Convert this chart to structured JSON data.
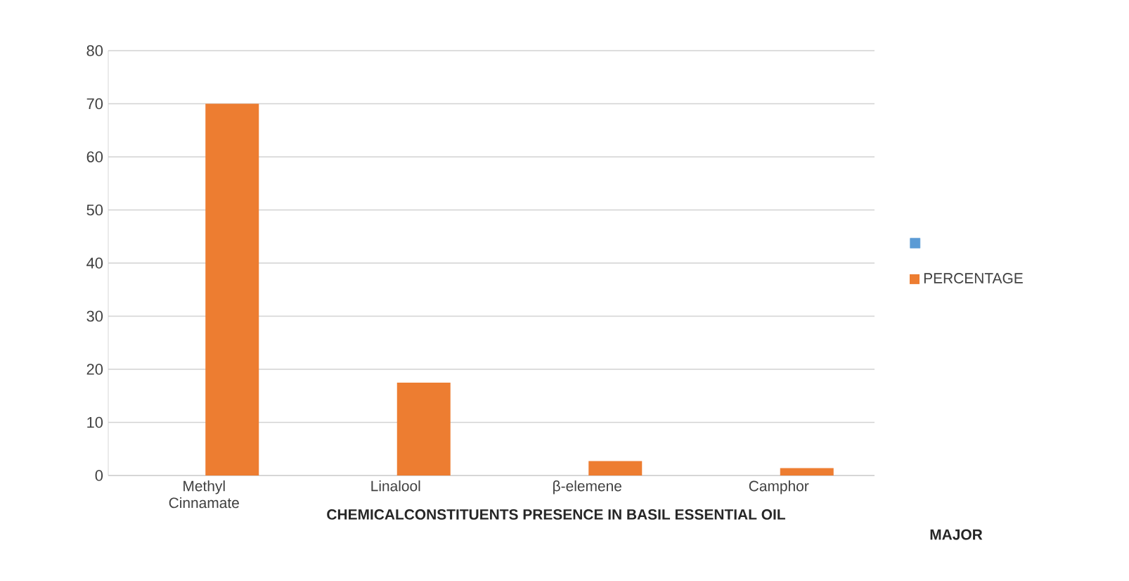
{
  "chart_data": {
    "type": "bar",
    "xlabel": "CHEMICALCONSTITUENTS PRESENCE IN BASIL ESSENTIAL OIL",
    "annotations": [
      "MAJOR"
    ],
    "categories": [
      "Methyl Cinnamate",
      "Linalool",
      "β-elemene",
      "Camphor"
    ],
    "series": [
      {
        "color": "#5b9bd5",
        "values": [
          null,
          null,
          null,
          null
        ]
      },
      {
        "name": "PERCENTAGE",
        "color": "#ed7d31",
        "values": [
          70,
          17.5,
          2.7,
          1.4
        ]
      }
    ],
    "ylim": [
      0,
      80
    ],
    "yticks": [
      0,
      10,
      20,
      30,
      40,
      50,
      60,
      70,
      80
    ],
    "grid": "y",
    "legend": "right"
  }
}
